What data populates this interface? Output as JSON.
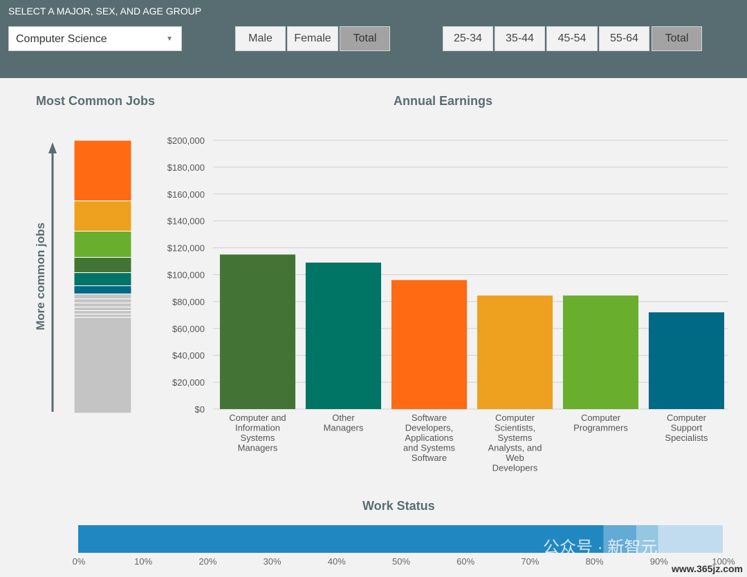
{
  "header": {
    "title": "SELECT A MAJOR, SEX, AND AGE GROUP",
    "major_select": "Computer Science",
    "sex_buttons": [
      "Male",
      "Female",
      "Total"
    ],
    "sex_active": "Total",
    "age_buttons": [
      "25-34",
      "35-44",
      "45-54",
      "55-64",
      "Total"
    ],
    "age_active": "Total"
  },
  "common_jobs": {
    "title": "Most Common Jobs",
    "axis_label": "More common jobs",
    "segments": [
      {
        "share": 0.222,
        "color": "#ff6a13"
      },
      {
        "share": 0.111,
        "color": "#eea01f"
      },
      {
        "share": 0.096,
        "color": "#6aae2e"
      },
      {
        "share": 0.056,
        "color": "#437435"
      },
      {
        "share": 0.048,
        "color": "#007465"
      },
      {
        "share": 0.03,
        "color": "#006a85"
      },
      {
        "share": 0.018,
        "color": "#c4c4c4"
      },
      {
        "share": 0.015,
        "color": "#c4c4c4"
      },
      {
        "share": 0.015,
        "color": "#c4c4c4"
      },
      {
        "share": 0.013,
        "color": "#c4c4c4"
      },
      {
        "share": 0.013,
        "color": "#c4c4c4"
      },
      {
        "share": 0.012,
        "color": "#c4c4c4"
      },
      {
        "share": 0.351,
        "color": "#c4c4c4"
      }
    ]
  },
  "earnings": {
    "title": "Annual Earnings"
  },
  "work_status": {
    "title": "Work Status"
  },
  "watermark": {
    "text": "公众号 · 新智元",
    "site": "www.365jz.com"
  },
  "chart_data": [
    {
      "type": "bar",
      "title": "Annual Earnings",
      "categories": [
        "Computer and Information Systems Managers",
        "Other Managers",
        "Software Developers, Applications and Systems Software",
        "Computer Scientists, Systems Analysts, and Web Developers",
        "Computer Programmers",
        "Computer Support Specialists"
      ],
      "category_lines": [
        [
          "Computer and",
          "Information",
          "Systems",
          "Managers"
        ],
        [
          "Other",
          "Managers"
        ],
        [
          "Software",
          "Developers,",
          "Applications",
          "and Systems",
          "Software"
        ],
        [
          "Computer",
          "Scientists,",
          "Systems",
          "Analysts, and",
          "Web",
          "Developers"
        ],
        [
          "Computer",
          "Programmers"
        ],
        [
          "Computer",
          "Support",
          "Specialists"
        ]
      ],
      "values": [
        115000,
        109000,
        96000,
        84500,
        84500,
        72000
      ],
      "colors": [
        "#437435",
        "#007465",
        "#ff6a13",
        "#eea01f",
        "#6aae2e",
        "#006a85"
      ],
      "ylim": [
        0,
        200000
      ],
      "yticks": [
        0,
        20000,
        40000,
        60000,
        80000,
        100000,
        120000,
        140000,
        160000,
        180000,
        200000
      ],
      "ytick_labels": [
        "$0",
        "$20,000",
        "$40,000",
        "$60,000",
        "$80,000",
        "$100,000",
        "$120,000",
        "$140,000",
        "$160,000",
        "$180,000",
        "$200,000"
      ],
      "grid": true
    },
    {
      "type": "bar",
      "title": "Work Status",
      "orientation": "horizontal-stacked",
      "segments": [
        {
          "value": 81.5,
          "color": "#2187c1"
        },
        {
          "value": 5.1,
          "color": "#64aad6"
        },
        {
          "value": 3.4,
          "color": "#95c6e4"
        },
        {
          "value": 10.0,
          "color": "#c2dcef"
        }
      ],
      "xlim": [
        0,
        100
      ],
      "xtick_labels": [
        "0%",
        "10%",
        "20%",
        "30%",
        "40%",
        "50%",
        "60%",
        "70%",
        "80%",
        "90%",
        "100%"
      ]
    }
  ]
}
